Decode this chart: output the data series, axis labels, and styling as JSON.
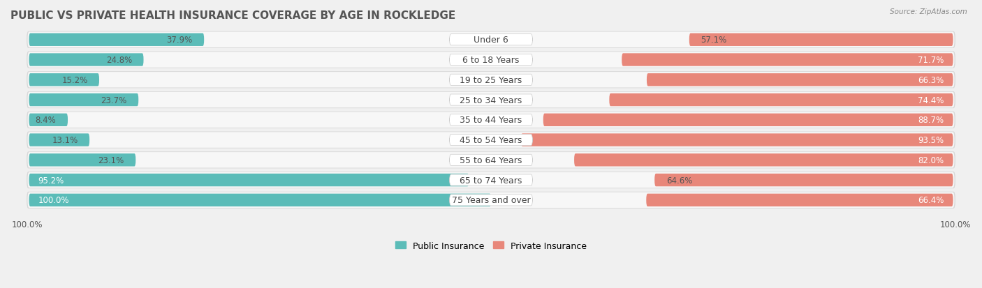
{
  "title": "PUBLIC VS PRIVATE HEALTH INSURANCE COVERAGE BY AGE IN ROCKLEDGE",
  "source": "Source: ZipAtlas.com",
  "categories": [
    "Under 6",
    "6 to 18 Years",
    "19 to 25 Years",
    "25 to 34 Years",
    "35 to 44 Years",
    "45 to 54 Years",
    "55 to 64 Years",
    "65 to 74 Years",
    "75 Years and over"
  ],
  "public_values": [
    37.9,
    24.8,
    15.2,
    23.7,
    8.4,
    13.1,
    23.1,
    95.2,
    100.0
  ],
  "private_values": [
    57.1,
    71.7,
    66.3,
    74.4,
    88.7,
    93.5,
    82.0,
    64.6,
    66.4
  ],
  "public_color": "#5bbcb8",
  "private_color": "#e8877a",
  "row_bg_color": "#f0f0f0",
  "row_inner_color": "#ffffff",
  "label_pill_color": "#ffffff",
  "title_fontsize": 11,
  "label_fontsize": 9,
  "value_fontsize": 8.5,
  "legend_fontsize": 9,
  "max_value": 100.0,
  "bottom_label": "100.0%"
}
